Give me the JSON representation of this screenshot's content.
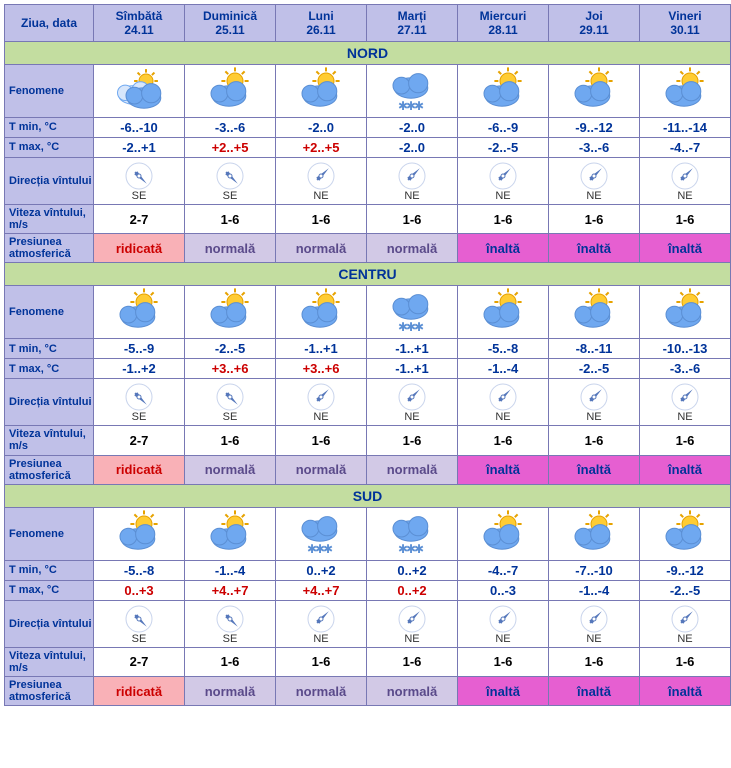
{
  "header_label": "Ziua, data",
  "days": [
    {
      "day": "Sîmbătă",
      "date": "24.11"
    },
    {
      "day": "Duminică",
      "date": "25.11"
    },
    {
      "day": "Luni",
      "date": "26.11"
    },
    {
      "day": "Marți",
      "date": "27.11"
    },
    {
      "day": "Miercuri",
      "date": "28.11"
    },
    {
      "day": "Joi",
      "date": "29.11"
    },
    {
      "day": "Vineri",
      "date": "30.11"
    }
  ],
  "row_labels": {
    "fenomene": "Fenomene",
    "tmin": "T min, °C",
    "tmax": "T max, °C",
    "dir": "Direcția vîntului",
    "speed": "Viteza vîntului, m/s",
    "pressure": "Presiunea atmosferică"
  },
  "regions": [
    {
      "name": "NORD",
      "fenomene": [
        "cloudy",
        "part",
        "part",
        "snow",
        "part",
        "part",
        "part"
      ],
      "tmin": [
        "-6..-10",
        "-3..-6",
        "-2..0",
        "-2..0",
        "-6..-9",
        "-9..-12",
        "-11..-14"
      ],
      "tmax": [
        "-2..+1",
        "+2..+5",
        "+2..+5",
        "-2..0",
        "-2..-5",
        "-3..-6",
        "-4..-7"
      ],
      "tmax_warm": [
        false,
        true,
        true,
        false,
        false,
        false,
        false
      ],
      "dir": [
        "SE",
        "SE",
        "NE",
        "NE",
        "NE",
        "NE",
        "NE"
      ],
      "dir_angle": [
        135,
        135,
        45,
        45,
        45,
        45,
        45
      ],
      "speed": [
        "2-7",
        "1-6",
        "1-6",
        "1-6",
        "1-6",
        "1-6",
        "1-6"
      ],
      "pressure": [
        "ridicată",
        "normală",
        "normală",
        "normală",
        "înaltă",
        "înaltă",
        "înaltă"
      ],
      "pressure_class": [
        "p-ridicata",
        "p-normala",
        "p-normala",
        "p-normala",
        "p-inalta",
        "p-inalta",
        "p-inalta"
      ]
    },
    {
      "name": "CENTRU",
      "fenomene": [
        "part",
        "part",
        "part",
        "snow",
        "part",
        "part",
        "part"
      ],
      "tmin": [
        "-5..-9",
        "-2..-5",
        "-1..+1",
        "-1..+1",
        "-5..-8",
        "-8..-11",
        "-10..-13"
      ],
      "tmax": [
        "-1..+2",
        "+3..+6",
        "+3..+6",
        "-1..+1",
        "-1..-4",
        "-2..-5",
        "-3..-6"
      ],
      "tmax_warm": [
        false,
        true,
        true,
        false,
        false,
        false,
        false
      ],
      "dir": [
        "SE",
        "SE",
        "NE",
        "NE",
        "NE",
        "NE",
        "NE"
      ],
      "dir_angle": [
        135,
        135,
        45,
        45,
        45,
        45,
        45
      ],
      "speed": [
        "2-7",
        "1-6",
        "1-6",
        "1-6",
        "1-6",
        "1-6",
        "1-6"
      ],
      "pressure": [
        "ridicată",
        "normală",
        "normală",
        "normală",
        "înaltă",
        "înaltă",
        "înaltă"
      ],
      "pressure_class": [
        "p-ridicata",
        "p-normala",
        "p-normala",
        "p-normala",
        "p-inalta",
        "p-inalta",
        "p-inalta"
      ]
    },
    {
      "name": "SUD",
      "fenomene": [
        "part",
        "part",
        "snow",
        "snow",
        "part",
        "part",
        "part"
      ],
      "tmin": [
        "-5..-8",
        "-1..-4",
        "0..+2",
        "0..+2",
        "-4..-7",
        "-7..-10",
        "-9..-12"
      ],
      "tmax": [
        "0..+3",
        "+4..+7",
        "+4..+7",
        "0..+2",
        "0..-3",
        "-1..-4",
        "-2..-5"
      ],
      "tmax_warm": [
        true,
        true,
        true,
        true,
        false,
        false,
        false
      ],
      "dir": [
        "SE",
        "SE",
        "NE",
        "NE",
        "NE",
        "NE",
        "NE"
      ],
      "dir_angle": [
        135,
        135,
        45,
        45,
        45,
        45,
        45
      ],
      "speed": [
        "2-7",
        "1-6",
        "1-6",
        "1-6",
        "1-6",
        "1-6",
        "1-6"
      ],
      "pressure": [
        "ridicată",
        "normală",
        "normală",
        "normală",
        "înaltă",
        "înaltă",
        "înaltă"
      ],
      "pressure_class": [
        "p-ridicata",
        "p-normala",
        "p-normala",
        "p-normala",
        "p-inalta",
        "p-inalta",
        "p-inalta"
      ]
    }
  ],
  "colors": {
    "border": "#7878b4",
    "header_bg": "#c0c0e8",
    "header_fg": "#003399",
    "region_bg": "#c3dda0",
    "tmin_fg": "#003399",
    "tmax_warm": "#cc0000",
    "tmax_cold": "#003399",
    "cloud": "#6fa8f0",
    "cloud_dark": "#5b8fd4",
    "sun": "#ffcc33",
    "sun_edge": "#e6a200",
    "compass": "#5577bb"
  }
}
